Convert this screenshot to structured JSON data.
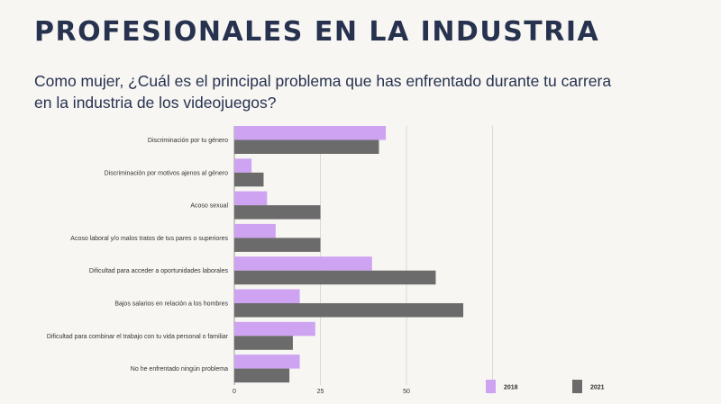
{
  "header": {
    "title": "PROFESIONALES EN LA INDUSTRIA",
    "question": "Como mujer, ¿Cuál es el principal problema que has enfrentado durante tu carrera en la industria de los videojuegos?"
  },
  "chart_data": {
    "type": "bar",
    "orientation": "horizontal",
    "categories": [
      "Discriminación por tu género",
      "Discriminación por motivos ajenos al género",
      "Acoso sexual",
      "Acoso laboral y/o malos tratos de tus pares o superiores",
      "Dificultad para acceder a oportunidades laborales",
      "Bajos salarios en relación a los hombres",
      "Dificultad para combinar el trabajo con tu vida personal o familiar",
      "No he enfrentado ningún problema"
    ],
    "series": [
      {
        "name": "2018",
        "color": "#cda3f2",
        "values": [
          44,
          5,
          9.5,
          12,
          40,
          19,
          23.5,
          19
        ]
      },
      {
        "name": "2021",
        "color": "#6b6b6b",
        "values": [
          42,
          8.5,
          25,
          25,
          58.5,
          66.5,
          17,
          16
        ]
      }
    ],
    "xlim": [
      0,
      75
    ],
    "xticks": [
      0,
      25,
      50
    ],
    "xtick_labels": [
      "0",
      "25",
      "50"
    ],
    "grid": true,
    "legend_position": "bottom-right"
  }
}
